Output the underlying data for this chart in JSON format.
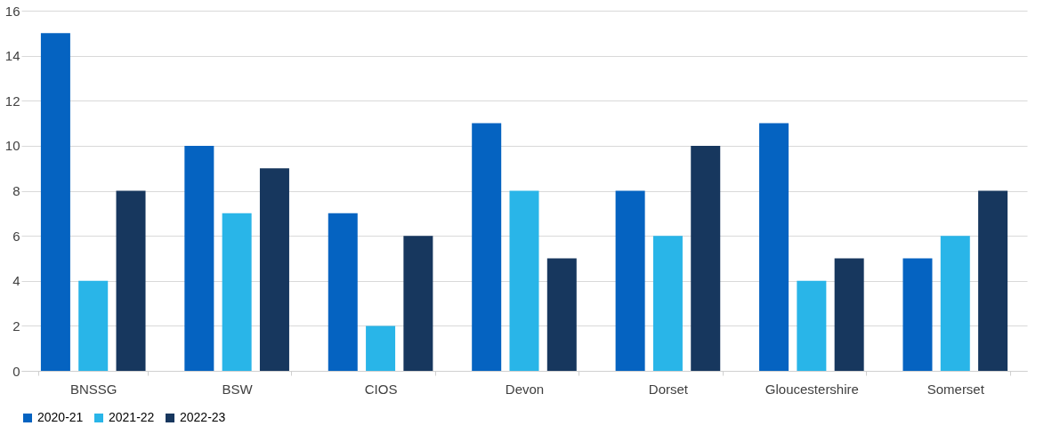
{
  "chart_data": {
    "type": "bar",
    "categories": [
      "BNSSG",
      "BSW",
      "CIOS",
      "Devon",
      "Dorset",
      "Gloucestershire",
      "Somerset"
    ],
    "series": [
      {
        "name": "2020-21",
        "color": "#0563c1",
        "values": [
          15,
          10,
          7,
          11,
          8,
          11,
          5
        ]
      },
      {
        "name": "2021-22",
        "color": "#29b5e8",
        "values": [
          4,
          7,
          2,
          8,
          6,
          4,
          6
        ]
      },
      {
        "name": "2022-23",
        "color": "#17375e",
        "values": [
          8,
          9,
          6,
          5,
          10,
          5,
          8
        ]
      }
    ],
    "ylim": [
      0,
      16
    ],
    "yticks": [
      0,
      2,
      4,
      6,
      8,
      10,
      12,
      14,
      16
    ],
    "grid": "y",
    "legend": "bottom"
  }
}
